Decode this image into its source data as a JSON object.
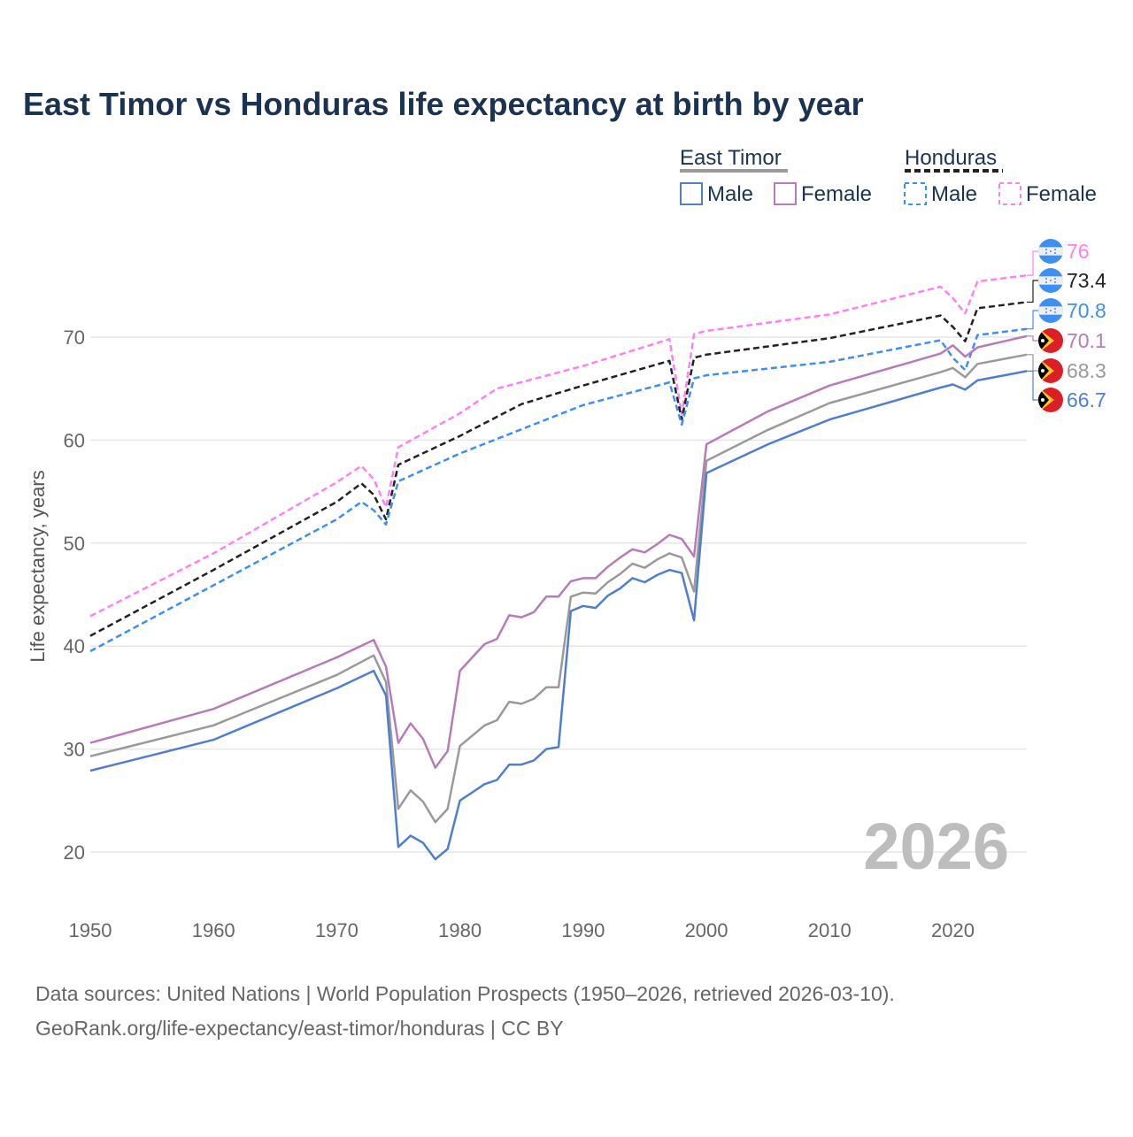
{
  "chart_data": {
    "type": "line",
    "title": "East Timor vs Honduras life expectancy at birth by year",
    "ylabel": "Life expectancy, years",
    "xlabel": "",
    "xlim": [
      1950,
      2026
    ],
    "ylim": [
      15,
      78
    ],
    "xticks": [
      1950,
      1960,
      1970,
      1980,
      1990,
      2000,
      2010,
      2020
    ],
    "yticks": [
      20,
      30,
      40,
      50,
      60,
      70
    ],
    "grid": true,
    "watermark_year": "2026",
    "legend": {
      "placement": "top-right",
      "groups": [
        {
          "country": "East Timor",
          "items": [
            "Male",
            "Female"
          ]
        },
        {
          "country": "Honduras",
          "items": [
            "Male",
            "Female"
          ]
        }
      ]
    },
    "series": [
      {
        "name": "Honduras Female",
        "country": "Honduras",
        "color": "#ff80f0",
        "dashed": true,
        "end_label": "76",
        "x": [
          1950,
          1960,
          1970,
          1972,
          1973,
          1974,
          1975,
          1980,
          1983,
          1990,
          1997,
          1998,
          1999,
          2000,
          2010,
          2019,
          2020,
          2021,
          2022,
          2026
        ],
        "y": [
          42.9,
          49.0,
          55.9,
          57.5,
          56.2,
          53.5,
          59.3,
          62.6,
          65.0,
          67.2,
          69.8,
          62.5,
          70.3,
          70.6,
          72.2,
          74.9,
          73.8,
          72.3,
          75.4,
          76.0
        ]
      },
      {
        "name": "Honduras",
        "country": "Honduras",
        "color": "#222222",
        "dashed": true,
        "end_label": "73.4",
        "x": [
          1950,
          1960,
          1970,
          1972,
          1973,
          1974,
          1975,
          1980,
          1985,
          1990,
          1997,
          1998,
          1999,
          2000,
          2010,
          2019,
          2020,
          2021,
          2022,
          2026
        ],
        "y": [
          41.0,
          47.4,
          54.0,
          55.8,
          54.7,
          52.3,
          57.6,
          60.4,
          63.5,
          65.3,
          67.7,
          62.0,
          68.0,
          68.3,
          69.9,
          72.1,
          71.0,
          69.6,
          72.8,
          73.4
        ]
      },
      {
        "name": "Honduras Male",
        "country": "Honduras",
        "color": "#3d8ef5",
        "dashed": true,
        "end_label": "70.8",
        "x": [
          1950,
          1960,
          1970,
          1972,
          1973,
          1974,
          1975,
          1980,
          1990,
          1997,
          1998,
          1999,
          2000,
          2010,
          2019,
          2020,
          2021,
          2022,
          2026
        ],
        "y": [
          39.5,
          45.9,
          52.3,
          54.0,
          53.2,
          51.8,
          56.0,
          58.7,
          63.4,
          65.6,
          61.5,
          66.0,
          66.3,
          67.6,
          69.7,
          68.0,
          66.8,
          70.2,
          70.8
        ]
      },
      {
        "name": "East Timor Female",
        "country": "East Timor",
        "color": "#b67bb8",
        "dashed": false,
        "end_label": "70.1",
        "x": [
          1950,
          1960,
          1970,
          1973,
          1974,
          1975,
          1976,
          1977,
          1978,
          1979,
          1980,
          1982,
          1983,
          1984,
          1985,
          1986,
          1987,
          1988,
          1989,
          1990,
          1991,
          1992,
          1993,
          1994,
          1995,
          1996,
          1997,
          1998,
          1999,
          2000,
          2005,
          2010,
          2019,
          2020,
          2021,
          2022,
          2026
        ],
        "y": [
          30.6,
          33.9,
          38.9,
          40.6,
          38.0,
          30.6,
          32.5,
          31.0,
          28.2,
          29.8,
          37.6,
          40.2,
          40.7,
          43.0,
          42.8,
          43.3,
          44.8,
          44.8,
          46.3,
          46.6,
          46.6,
          47.7,
          48.6,
          49.4,
          49.1,
          49.9,
          50.8,
          50.4,
          48.7,
          59.6,
          62.8,
          65.3,
          68.4,
          69.2,
          68.1,
          69.0,
          70.1
        ]
      },
      {
        "name": "East Timor",
        "country": "East Timor",
        "color": "#9a9a9a",
        "dashed": false,
        "end_label": "68.3",
        "x": [
          1950,
          1960,
          1970,
          1973,
          1974,
          1975,
          1976,
          1977,
          1978,
          1979,
          1980,
          1982,
          1983,
          1984,
          1985,
          1986,
          1987,
          1988,
          1989,
          1990,
          1991,
          1992,
          1993,
          1994,
          1995,
          1996,
          1997,
          1998,
          1999,
          2000,
          2005,
          2010,
          2019,
          2020,
          2021,
          2022,
          2026
        ],
        "y": [
          29.3,
          32.3,
          37.2,
          39.1,
          36.5,
          24.2,
          26.0,
          24.9,
          22.9,
          24.2,
          30.3,
          32.3,
          32.8,
          34.6,
          34.4,
          34.9,
          36.0,
          36.0,
          44.8,
          45.2,
          45.1,
          46.2,
          47.0,
          48.0,
          47.6,
          48.4,
          49.0,
          48.6,
          45.3,
          58.0,
          61.0,
          63.6,
          66.6,
          67.0,
          66.1,
          67.4,
          68.3
        ]
      },
      {
        "name": "East Timor Male",
        "country": "East Timor",
        "color": "#4f7fcc",
        "dashed": false,
        "end_label": "66.7",
        "x": [
          1950,
          1960,
          1970,
          1973,
          1974,
          1975,
          1976,
          1977,
          1978,
          1979,
          1980,
          1981,
          1982,
          1983,
          1984,
          1985,
          1986,
          1987,
          1988,
          1989,
          1990,
          1991,
          1992,
          1993,
          1994,
          1995,
          1996,
          1997,
          1998,
          1999,
          2000,
          2005,
          2010,
          2019,
          2020,
          2021,
          2022,
          2026
        ],
        "y": [
          27.9,
          30.9,
          35.9,
          37.6,
          35.2,
          20.5,
          21.6,
          20.9,
          19.3,
          20.3,
          25.0,
          25.8,
          26.6,
          27.0,
          28.5,
          28.5,
          28.9,
          30.0,
          30.2,
          43.4,
          43.9,
          43.7,
          44.9,
          45.6,
          46.6,
          46.2,
          46.9,
          47.4,
          47.1,
          42.5,
          56.8,
          59.6,
          62.0,
          65.1,
          65.4,
          64.9,
          65.8,
          66.7
        ]
      }
    ]
  },
  "footer": {
    "line1": "Data sources: United Nations | World Population Prospects (1950–2026, retrieved 2026-03-10).",
    "line2": "GeoRank.org/life-expectancy/east-timor/honduras | CC BY"
  }
}
